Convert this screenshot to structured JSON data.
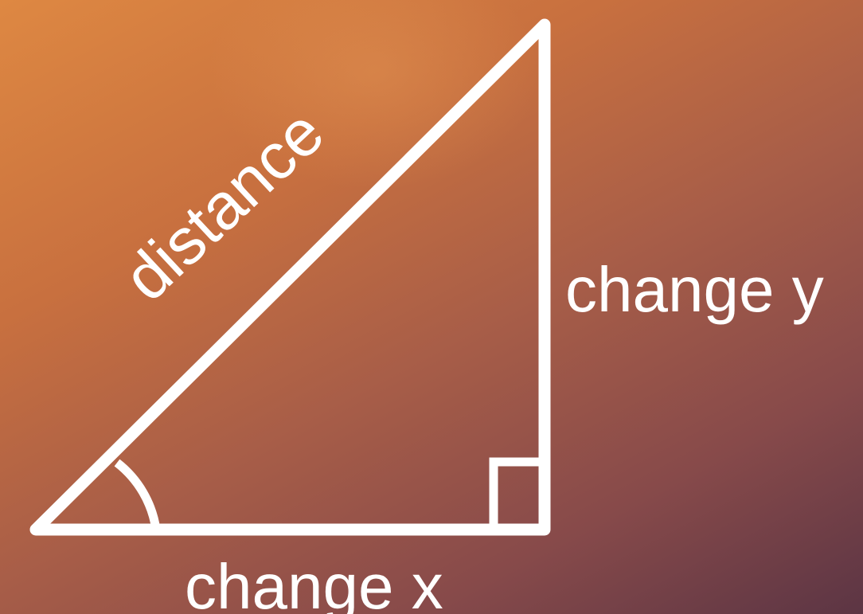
{
  "diagram": {
    "hypotenuse_label": "distance",
    "vertical_label": "change y",
    "horizontal_label": "change x"
  },
  "colors": {
    "background_start": "#de8842",
    "background_end": "#5c3544",
    "lines": "#ffffff",
    "text": "#ffffff"
  }
}
